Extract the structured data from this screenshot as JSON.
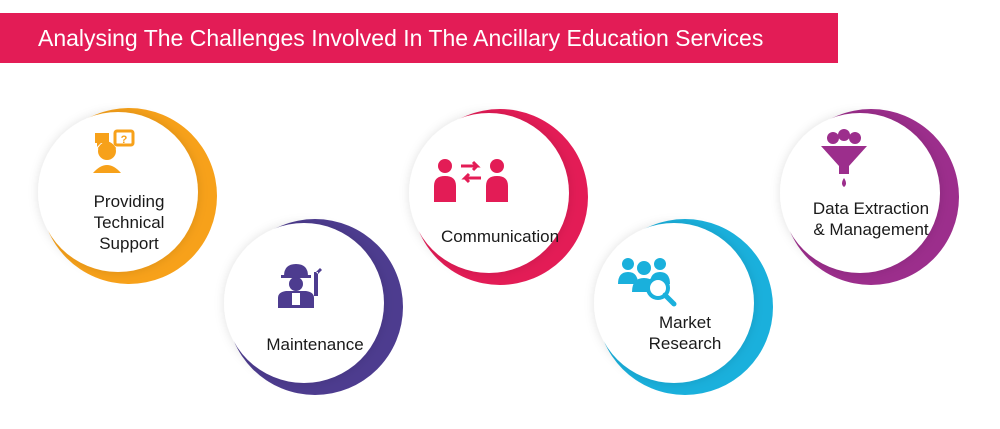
{
  "title": "Analysing The Challenges Involved In The Ancillary Education Services",
  "colors": {
    "banner": "#e31c56",
    "orange": "#f7a11a",
    "purple": "#4d3c8f",
    "crimson": "#e31c56",
    "cyan": "#1ab0dc",
    "magenta": "#9c2e8c"
  },
  "nodes": {
    "support": {
      "lines": [
        "Providing",
        "Technical",
        "Support"
      ],
      "icon": "support-agent-icon",
      "color": "#f7a11a"
    },
    "maintenance": {
      "lines": [
        "Maintenance"
      ],
      "icon": "worker-wrench-icon",
      "color": "#4d3c8f"
    },
    "communication": {
      "lines": [
        "Communication"
      ],
      "icon": "people-exchange-icon",
      "color": "#e31c56"
    },
    "research": {
      "lines": [
        "Market",
        "Research"
      ],
      "icon": "group-magnifier-icon",
      "color": "#1ab0dc"
    },
    "extraction": {
      "lines": [
        "Data Extraction",
        "& Management"
      ],
      "icon": "data-funnel-icon",
      "color": "#9c2e8c"
    }
  }
}
